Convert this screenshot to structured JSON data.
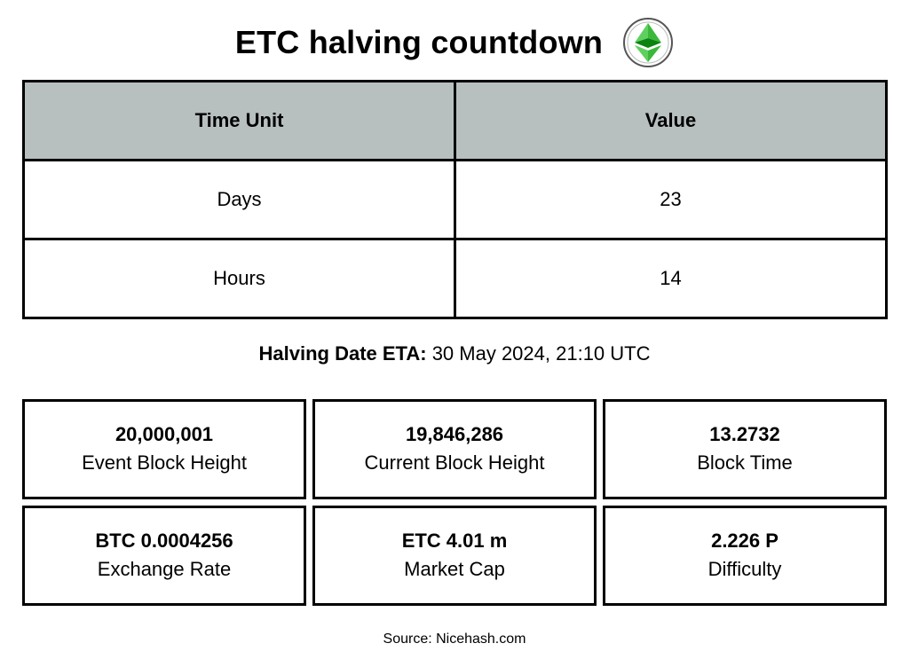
{
  "header": {
    "title": "ETC halving countdown",
    "logo_icon": "ethereum-classic-logo-icon",
    "logo_colors": {
      "light": "#3ab83a",
      "dark": "#0b8311",
      "ring": "#555555"
    }
  },
  "countdown_table": {
    "headers": [
      "Time Unit",
      "Value"
    ],
    "rows": [
      {
        "unit": "Days",
        "value": "23"
      },
      {
        "unit": "Hours",
        "value": "14"
      }
    ],
    "header_bg": "#b8bfbf"
  },
  "eta": {
    "label": "Halving Date ETA:",
    "value": "30 May 2024, 21:10 UTC"
  },
  "stats": [
    {
      "value": "20,000,001",
      "label": "Event Block Height"
    },
    {
      "value": "19,846,286",
      "label": "Current Block Height"
    },
    {
      "value": "13.2732",
      "label": "Block Time"
    },
    {
      "value": "BTC 0.0004256",
      "label": "Exchange Rate"
    },
    {
      "value": "ETC 4.01 m",
      "label": "Market Cap"
    },
    {
      "value": "2.226 P",
      "label": "Difficulty"
    }
  ],
  "footer": {
    "source": "Source: Nicehash.com"
  }
}
